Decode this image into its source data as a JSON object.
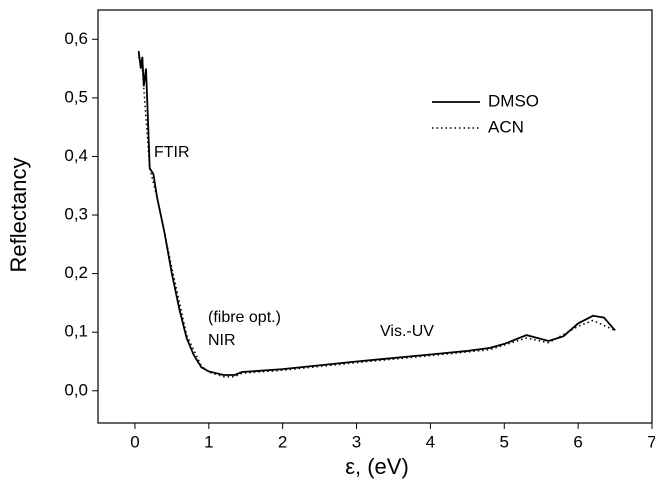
{
  "chart_data": {
    "type": "line",
    "xlabel": "ε, (eV)",
    "ylabel": "Reflectancy",
    "xlim": [
      -0.5,
      7
    ],
    "ylim": [
      -0.055,
      0.65
    ],
    "xticks": [
      0,
      1,
      2,
      3,
      4,
      5,
      6,
      7
    ],
    "yticks": [
      {
        "value": 0,
        "label": "0,0"
      },
      {
        "value": 0.1,
        "label": "0,1"
      },
      {
        "value": 0.2,
        "label": "0,2"
      },
      {
        "value": 0.3,
        "label": "0,3"
      },
      {
        "value": 0.4,
        "label": "0,4"
      },
      {
        "value": 0.5,
        "label": "0,5"
      },
      {
        "value": 0.6,
        "label": "0,6"
      }
    ],
    "annotations": [
      "FTIR",
      "(fibre opt.)",
      "NIR",
      "Vis.-UV"
    ],
    "legend": "upper right",
    "series": [
      {
        "name": "DMSO",
        "color": "#000000",
        "style": "solid",
        "x": [
          0.05,
          0.08,
          0.1,
          0.12,
          0.15,
          0.18,
          0.2,
          0.25,
          0.3,
          0.4,
          0.5,
          0.6,
          0.7,
          0.8,
          0.9,
          1.0,
          1.2,
          1.35,
          1.45,
          2,
          3,
          4,
          4.5,
          4.8,
          5.0,
          5.3,
          5.6,
          5.8,
          6.0,
          6.2,
          6.35,
          6.5
        ],
        "values": [
          0.58,
          0.55,
          0.57,
          0.52,
          0.55,
          0.45,
          0.38,
          0.37,
          0.33,
          0.27,
          0.2,
          0.14,
          0.09,
          0.06,
          0.04,
          0.033,
          0.027,
          0.027,
          0.032,
          0.037,
          0.05,
          0.062,
          0.068,
          0.073,
          0.08,
          0.095,
          0.085,
          0.093,
          0.115,
          0.128,
          0.125,
          0.103
        ]
      },
      {
        "name": "ACN",
        "color": "#000000",
        "style": "dotted",
        "x": [
          0.05,
          0.1,
          0.2,
          0.3,
          0.5,
          0.7,
          0.9,
          1.0,
          1.2,
          1.35,
          1.45,
          2,
          3,
          4,
          4.8,
          5.3,
          5.6,
          6.0,
          6.2,
          6.5
        ],
        "values": [
          0.57,
          0.55,
          0.38,
          0.33,
          0.21,
          0.095,
          0.042,
          0.032,
          0.024,
          0.024,
          0.03,
          0.035,
          0.048,
          0.06,
          0.07,
          0.09,
          0.082,
          0.11,
          0.12,
          0.103
        ]
      }
    ]
  }
}
